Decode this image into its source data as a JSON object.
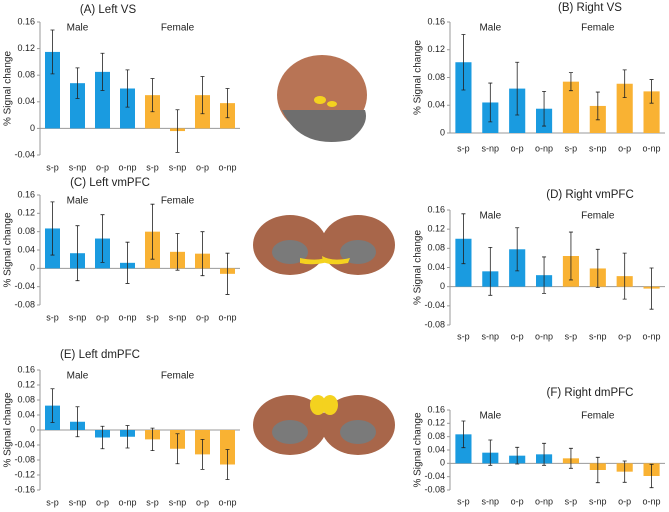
{
  "chart_data": [
    {
      "type": "bar",
      "title": "(A) Left VS",
      "ylabel": "% Signal change",
      "groups": [
        "Male",
        "Female"
      ],
      "categories": [
        "s-p",
        "s-np",
        "o-p",
        "o-np",
        "s-p",
        "s-np",
        "o-p",
        "o-np"
      ],
      "values": [
        0.115,
        0.068,
        0.085,
        0.06,
        0.05,
        -0.004,
        0.05,
        0.038
      ],
      "errors": [
        0.033,
        0.023,
        0.028,
        0.028,
        0.025,
        0.032,
        0.028,
        0.022
      ],
      "colors": [
        "#1a9be0",
        "#1a9be0",
        "#1a9be0",
        "#1a9be0",
        "#f9b233",
        "#f9b233",
        "#f9b233",
        "#f9b233"
      ],
      "ylim": [
        -0.04,
        0.16
      ],
      "yticks": [
        -0.04,
        0,
        0.04,
        0.08,
        0.12,
        0.16
      ]
    },
    {
      "type": "bar",
      "title": "(B) Right VS",
      "ylabel": "% Signal change",
      "groups": [
        "Male",
        "Female"
      ],
      "categories": [
        "s-p",
        "s-np",
        "o-p",
        "o-np",
        "s-p",
        "s-np",
        "o-p",
        "o-np"
      ],
      "values": [
        0.102,
        0.044,
        0.064,
        0.035,
        0.074,
        0.039,
        0.071,
        0.06
      ],
      "errors": [
        0.04,
        0.028,
        0.038,
        0.025,
        0.013,
        0.02,
        0.02,
        0.017
      ],
      "colors": [
        "#1a9be0",
        "#1a9be0",
        "#1a9be0",
        "#1a9be0",
        "#f9b233",
        "#f9b233",
        "#f9b233",
        "#f9b233"
      ],
      "ylim": [
        0,
        0.16
      ],
      "yticks": [
        0,
        0.04,
        0.08,
        0.12,
        0.16
      ]
    },
    {
      "type": "bar",
      "title": "(C) Left vmPFC",
      "ylabel": "% Signal change",
      "groups": [
        "Male",
        "Female"
      ],
      "categories": [
        "s-p",
        "s-np",
        "o-p",
        "o-np",
        "s-p",
        "s-np",
        "o-p",
        "o-np"
      ],
      "values": [
        0.087,
        0.033,
        0.065,
        0.012,
        0.08,
        0.036,
        0.032,
        -0.012
      ],
      "errors": [
        0.058,
        0.06,
        0.052,
        0.045,
        0.06,
        0.04,
        0.048,
        0.045
      ],
      "colors": [
        "#1a9be0",
        "#1a9be0",
        "#1a9be0",
        "#1a9be0",
        "#f9b233",
        "#f9b233",
        "#f9b233",
        "#f9b233"
      ],
      "ylim": [
        -0.08,
        0.16
      ],
      "yticks": [
        -0.08,
        -0.04,
        0,
        0.04,
        0.08,
        0.12,
        0.16
      ]
    },
    {
      "type": "bar",
      "title": "(D) Right vmPFC",
      "ylabel": "% Signal change",
      "groups": [
        "Male",
        "Female"
      ],
      "categories": [
        "s-p",
        "s-np",
        "o-p",
        "o-np",
        "s-p",
        "s-np",
        "o-p",
        "o-np"
      ],
      "values": [
        0.1,
        0.032,
        0.078,
        0.024,
        0.064,
        0.038,
        0.022,
        -0.004
      ],
      "errors": [
        0.052,
        0.05,
        0.045,
        0.038,
        0.05,
        0.04,
        0.048,
        0.043
      ],
      "colors": [
        "#1a9be0",
        "#1a9be0",
        "#1a9be0",
        "#1a9be0",
        "#f9b233",
        "#f9b233",
        "#f9b233",
        "#f9b233"
      ],
      "ylim": [
        -0.08,
        0.16
      ],
      "yticks": [
        -0.08,
        -0.04,
        0,
        0.04,
        0.08,
        0.12,
        0.16
      ]
    },
    {
      "type": "bar",
      "title": "(E) Left dmPFC",
      "ylabel": "% Signal change",
      "groups": [
        "Male",
        "Female"
      ],
      "categories": [
        "s-p",
        "s-np",
        "o-p",
        "o-np",
        "s-p",
        "s-np",
        "o-p",
        "o-np"
      ],
      "values": [
        0.065,
        0.022,
        -0.02,
        -0.018,
        -0.025,
        -0.05,
        -0.065,
        -0.092
      ],
      "errors": [
        0.045,
        0.04,
        0.03,
        0.03,
        0.03,
        0.04,
        0.04,
        0.04
      ],
      "colors": [
        "#1a9be0",
        "#1a9be0",
        "#1a9be0",
        "#1a9be0",
        "#f9b233",
        "#f9b233",
        "#f9b233",
        "#f9b233"
      ],
      "ylim": [
        -0.16,
        0.16
      ],
      "yticks": [
        -0.16,
        -0.12,
        -0.08,
        -0.04,
        0,
        0.04,
        0.08,
        0.12,
        0.16
      ]
    },
    {
      "type": "bar",
      "title": "(F) Right dmPFC",
      "ylabel": "% Signal change",
      "groups": [
        "Male",
        "Female"
      ],
      "categories": [
        "s-p",
        "s-np",
        "o-p",
        "o-np",
        "s-p",
        "s-np",
        "o-p",
        "o-np"
      ],
      "values": [
        0.087,
        0.032,
        0.023,
        0.027,
        0.015,
        -0.02,
        -0.025,
        -0.038
      ],
      "errors": [
        0.04,
        0.038,
        0.025,
        0.033,
        0.03,
        0.038,
        0.032,
        0.035
      ],
      "colors": [
        "#1a9be0",
        "#1a9be0",
        "#1a9be0",
        "#1a9be0",
        "#f9b233",
        "#f9b233",
        "#f9b233",
        "#f9b233"
      ],
      "ylim": [
        -0.08,
        0.16
      ],
      "yticks": [
        -0.08,
        -0.04,
        0,
        0.04,
        0.08,
        0.12,
        0.16
      ]
    }
  ]
}
